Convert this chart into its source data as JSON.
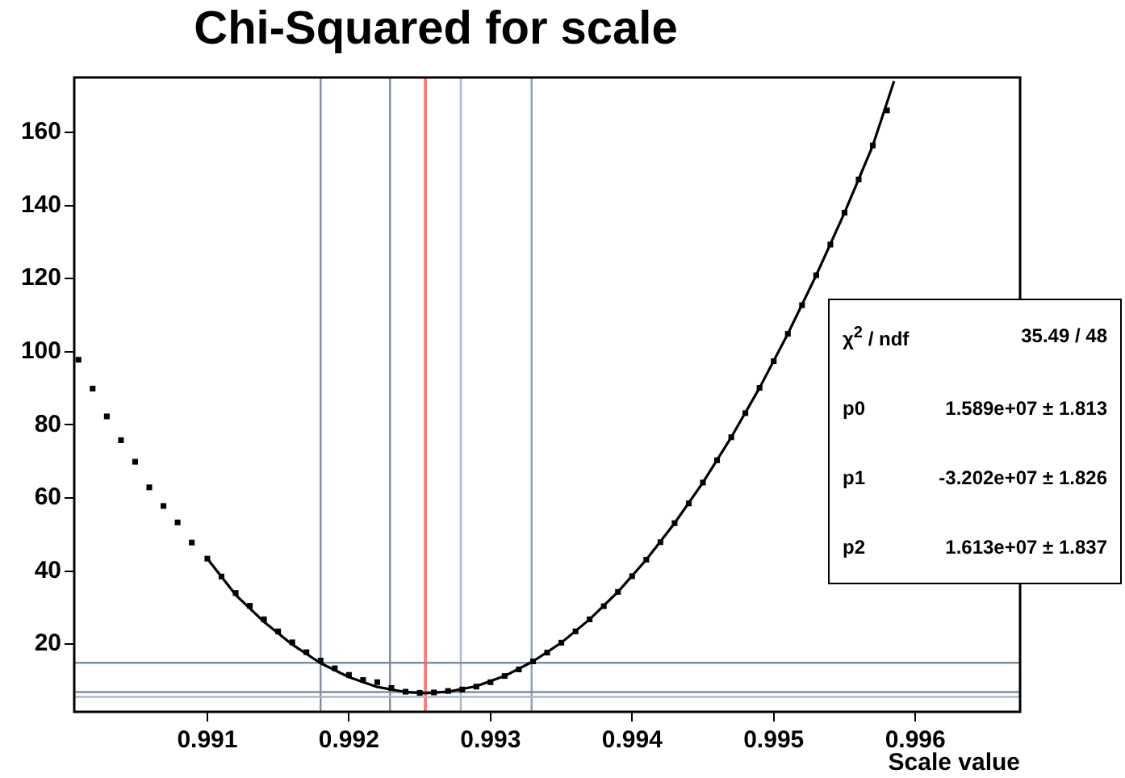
{
  "chart_data": {
    "type": "scatter",
    "title": "Chi-Squared for scale",
    "xlabel": "Scale value",
    "xlim": [
      0.99006,
      0.99674
    ],
    "xticks": [
      0.991,
      0.992,
      0.993,
      0.994,
      0.995,
      0.996
    ],
    "ylim": [
      1.5,
      175
    ],
    "yticks": [
      20,
      40,
      60,
      80,
      100,
      120,
      140,
      160
    ],
    "grid": false,
    "legend": false,
    "marker": "square",
    "series": [
      {
        "color": "#000000",
        "x": [
          0.99009,
          0.99019,
          0.99029,
          0.99039,
          0.99049,
          0.99059,
          0.99069,
          0.99079,
          0.99089,
          0.991,
          0.9911,
          0.9912,
          0.9913,
          0.9914,
          0.9915,
          0.9916,
          0.9917,
          0.9918,
          0.9919,
          0.992,
          0.9921,
          0.9922,
          0.9923,
          0.9924,
          0.9925,
          0.9926,
          0.9927,
          0.9928,
          0.9929,
          0.993,
          0.9931,
          0.9932,
          0.9933,
          0.9934,
          0.9935,
          0.9936,
          0.9937,
          0.9938,
          0.9939,
          0.994,
          0.9941,
          0.9942,
          0.9943,
          0.9944,
          0.9945,
          0.9946,
          0.9947,
          0.9948,
          0.9949,
          0.995,
          0.9951,
          0.9952,
          0.9953,
          0.9954,
          0.9955,
          0.9956,
          0.9957,
          0.9958
        ],
        "values": [
          97.8,
          89.9,
          82.3,
          75.8,
          69.9,
          62.9,
          57.8,
          53.3,
          47.8,
          43.4,
          38.5,
          34,
          30.5,
          26.8,
          23.5,
          20.5,
          17.8,
          15.5,
          13.4,
          11.6,
          10.2,
          9.6,
          8,
          7,
          6.7,
          6.8,
          7.2,
          7.6,
          8.4,
          9.6,
          11.3,
          13.1,
          15.3,
          17.7,
          20.4,
          23.5,
          26.8,
          30.4,
          34.3,
          38.6,
          43.1,
          47.9,
          53.1,
          58.5,
          64.2,
          70.3,
          76.6,
          83.2,
          90.1,
          97.4,
          104.9,
          112.7,
          120.9,
          129.3,
          138,
          147.1,
          156.4,
          166
        ]
      },
      {
        "type": "line",
        "color": "#000000",
        "marker": "none",
        "x": [
          0.991,
          0.9912,
          0.9914,
          0.9916,
          0.9918,
          0.992,
          0.9922,
          0.9924,
          0.99254,
          0.9927,
          0.9929,
          0.9931,
          0.9933,
          0.9935,
          0.9937,
          0.9939,
          0.9941,
          0.9943,
          0.9945,
          0.9947,
          0.9949,
          0.9951,
          0.9953,
          0.9955,
          0.9957,
          0.99585
        ],
        "values": [
          43.4,
          33.5,
          26.1,
          19.9,
          14.8,
          11,
          8.3,
          6.9,
          6.6,
          7,
          8.5,
          11.3,
          15.3,
          20.4,
          26.8,
          34.3,
          43.1,
          53.1,
          64.2,
          76.6,
          90.1,
          104.9,
          120.9,
          138,
          156.4,
          174
        ]
      }
    ],
    "ref_lines": [
      {
        "axis": "x",
        "value": 0.9918,
        "color": "#7d8ea0"
      },
      {
        "axis": "x",
        "value": 0.99229,
        "color": "#7d8ea0"
      },
      {
        "axis": "x",
        "value": 0.99254,
        "color": "#ff7b7b"
      },
      {
        "axis": "x",
        "value": 0.99279,
        "color": "#aab8c6"
      },
      {
        "axis": "x",
        "value": 0.99329,
        "color": "#8d9db0"
      },
      {
        "axis": "y",
        "value": 14.9,
        "color": "#7d8ea0"
      },
      {
        "axis": "y",
        "value": 6.9,
        "color": "#7d8ea0"
      },
      {
        "axis": "y",
        "value": 5.6,
        "color": "#aab8c6"
      }
    ],
    "annotations": [
      "χ$^{2}$ / ndf",
      "35.49 / 48",
      "p0",
      "1.589e+07 ± 1.813",
      "p1",
      "-3.202e+07 ± 1.826",
      "p2",
      "1.613e+07 ± 1.837"
    ]
  }
}
